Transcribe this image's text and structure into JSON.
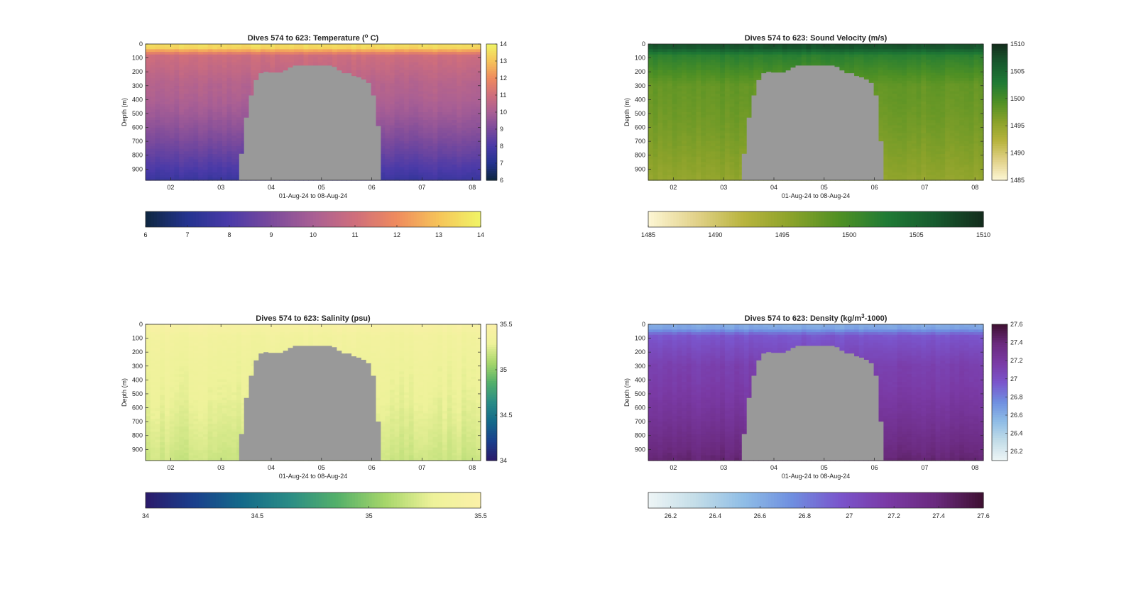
{
  "figure": {
    "x_dates": [
      "01-Aug-24",
      "02-Aug-24",
      "03-Aug-24",
      "04-Aug-24",
      "05-Aug-24",
      "06-Aug-24",
      "07-Aug-24",
      "08-Aug-24"
    ]
  },
  "chart_data": [
    {
      "type": "heatmap",
      "title": "Dives 574 to 623: Temperature (° C)",
      "title_prefix": "Dives 574 to 623: Temperature (",
      "title_sup": "o",
      "title_suffix": " C)",
      "xlabel": "01-Aug-24 to 08-Aug-24",
      "ylabel": "Depth (m)",
      "x_ticks": [
        "02",
        "03",
        "04",
        "05",
        "06",
        "07",
        "08"
      ],
      "xlim": [
        "01-Aug-24 12:00",
        "08-Aug-24 04:00"
      ],
      "y_ticks": [
        0,
        100,
        200,
        300,
        400,
        500,
        600,
        700,
        800,
        900
      ],
      "ylim": [
        0,
        980
      ],
      "y_reversed": true,
      "colorbar": {
        "min": 6,
        "max": 14,
        "ticks": [
          "6",
          "7",
          "8",
          "9",
          "10",
          "11",
          "12",
          "13",
          "14"
        ],
        "colors": [
          "#0e2740",
          "#24338f",
          "#4a3aa8",
          "#7a4a9c",
          "#a95f94",
          "#cf6e7c",
          "#ef8b5e",
          "#f6c45a",
          "#f0f566"
        ]
      },
      "surface_value": 13.5,
      "near_surface_value": 11.0,
      "interior_value": 10.3,
      "deep_value": 7.6
    },
    {
      "type": "heatmap",
      "title": "Dives 574 to 623: Sound Velocity (m/s)",
      "xlabel": "01-Aug-24 to 08-Aug-24",
      "ylabel": "Depth (m)",
      "x_ticks": [
        "02",
        "03",
        "04",
        "05",
        "06",
        "07",
        "08"
      ],
      "xlim": [
        "01-Aug-24 12:00",
        "08-Aug-24 04:00"
      ],
      "y_ticks": [
        0,
        100,
        200,
        300,
        400,
        500,
        600,
        700,
        800,
        900
      ],
      "ylim": [
        0,
        980
      ],
      "y_reversed": true,
      "colorbar": {
        "min": 1485,
        "max": 1510,
        "ticks": [
          "1485",
          "1490",
          "1495",
          "1500",
          "1505",
          "1510"
        ],
        "colors": [
          "#fdf6d4",
          "#e2d28a",
          "#b8b43e",
          "#8aa22a",
          "#4f9024",
          "#1f7a35",
          "#175a2e",
          "#132c1c"
        ]
      },
      "surface_value": 1507,
      "near_surface_value": 1502,
      "interior_value": 1498,
      "deep_value": 1495
    },
    {
      "type": "heatmap",
      "title": "Dives 574 to 623: Salinity (psu)",
      "xlabel": "01-Aug-24 to 08-Aug-24",
      "ylabel": "Depth (m)",
      "x_ticks": [
        "02",
        "03",
        "04",
        "05",
        "06",
        "07",
        "08"
      ],
      "xlim": [
        "01-Aug-24 12:00",
        "08-Aug-24 04:00"
      ],
      "y_ticks": [
        0,
        100,
        200,
        300,
        400,
        500,
        600,
        700,
        800,
        900
      ],
      "ylim": [
        0,
        980
      ],
      "y_reversed": true,
      "colorbar": {
        "min": 34,
        "max": 35.5,
        "ticks": [
          "34",
          "34.5",
          "35",
          "35.5"
        ],
        "colors": [
          "#2a1a6a",
          "#1a3f8c",
          "#146a8a",
          "#2a8c86",
          "#54b06a",
          "#a6d66a",
          "#eef29a",
          "#fbf1a8"
        ]
      },
      "surface_value": 35.42,
      "near_surface_value": 35.35,
      "interior_value": 35.3,
      "deep_value": 35.18
    },
    {
      "type": "heatmap",
      "title": "Dives 574 to 623: Density (kg/m³-1000)",
      "title_prefix": "Dives 574 to 623: Density (kg/m",
      "title_sup": "3",
      "title_suffix": "-1000)",
      "xlabel": "01-Aug-24 to 08-Aug-24",
      "ylabel": "Depth (m)",
      "x_ticks": [
        "02",
        "03",
        "04",
        "05",
        "06",
        "07",
        "08"
      ],
      "xlim": [
        "01-Aug-24 12:00",
        "08-Aug-24 04:00"
      ],
      "y_ticks": [
        0,
        100,
        200,
        300,
        400,
        500,
        600,
        700,
        800,
        900
      ],
      "ylim": [
        0,
        980
      ],
      "y_reversed": true,
      "colorbar": {
        "min": 26.1,
        "max": 27.6,
        "ticks": [
          "26.2",
          "26.4",
          "26.6",
          "26.8",
          "27",
          "27.2",
          "27.4",
          "27.6"
        ],
        "colors": [
          "#eef5f6",
          "#c3dde8",
          "#8fbde6",
          "#6f8fe0",
          "#7a55cc",
          "#7a3aa5",
          "#6a2a7e",
          "#3e1031"
        ]
      },
      "surface_value": 26.62,
      "near_surface_value": 26.95,
      "interior_value": 27.12,
      "deep_value": 27.42
    }
  ],
  "seafloor": {
    "color": "#999999",
    "bathymetry_depths_m": [
      [
        980,
        980,
        790,
        530,
        370,
        260,
        210,
        200,
        205,
        205,
        205,
        190,
        170,
        155,
        155,
        155,
        155,
        155,
        155,
        155,
        155,
        165,
        190,
        210,
        210,
        230,
        240,
        255,
        280,
        370,
        590,
        980,
        980
      ],
      [
        980,
        980,
        790,
        530,
        370,
        260,
        210,
        200,
        205,
        205,
        205,
        190,
        170,
        155,
        155,
        155,
        155,
        155,
        155,
        155,
        155,
        165,
        190,
        210,
        210,
        230,
        240,
        255,
        280,
        370,
        700,
        980,
        980
      ],
      [
        980,
        980,
        790,
        530,
        370,
        260,
        210,
        200,
        205,
        205,
        205,
        190,
        170,
        155,
        155,
        155,
        155,
        155,
        155,
        155,
        155,
        165,
        190,
        210,
        210,
        230,
        240,
        255,
        280,
        370,
        700,
        980,
        980
      ],
      [
        980,
        980,
        790,
        530,
        370,
        260,
        210,
        200,
        205,
        205,
        205,
        190,
        170,
        155,
        155,
        155,
        155,
        155,
        155,
        155,
        155,
        165,
        190,
        210,
        210,
        230,
        240,
        255,
        280,
        370,
        700,
        980,
        980
      ]
    ],
    "bathymetry_times": [
      "03-Aug-24 05:00",
      "03-Aug-24 06:20",
      "03-Aug-24 08:40",
      "03-Aug-24 11:00",
      "03-Aug-24 13:20",
      "03-Aug-24 15:40",
      "03-Aug-24 18:00",
      "03-Aug-24 20:20",
      "03-Aug-24 22:40",
      "04-Aug-24 01:00",
      "04-Aug-24 03:20",
      "04-Aug-24 05:40",
      "04-Aug-24 08:00",
      "04-Aug-24 10:20",
      "04-Aug-24 12:40",
      "04-Aug-24 15:00",
      "04-Aug-24 17:20",
      "04-Aug-24 19:40",
      "04-Aug-24 22:00",
      "05-Aug-24 00:20",
      "05-Aug-24 02:40",
      "05-Aug-24 05:00",
      "05-Aug-24 07:20",
      "05-Aug-24 09:40",
      "05-Aug-24 12:00",
      "05-Aug-24 14:20",
      "05-Aug-24 16:40",
      "05-Aug-24 19:00",
      "05-Aug-24 21:20",
      "05-Aug-24 23:40",
      "06-Aug-24 02:00",
      "06-Aug-24 04:20",
      "06-Aug-24 06:40"
    ]
  }
}
